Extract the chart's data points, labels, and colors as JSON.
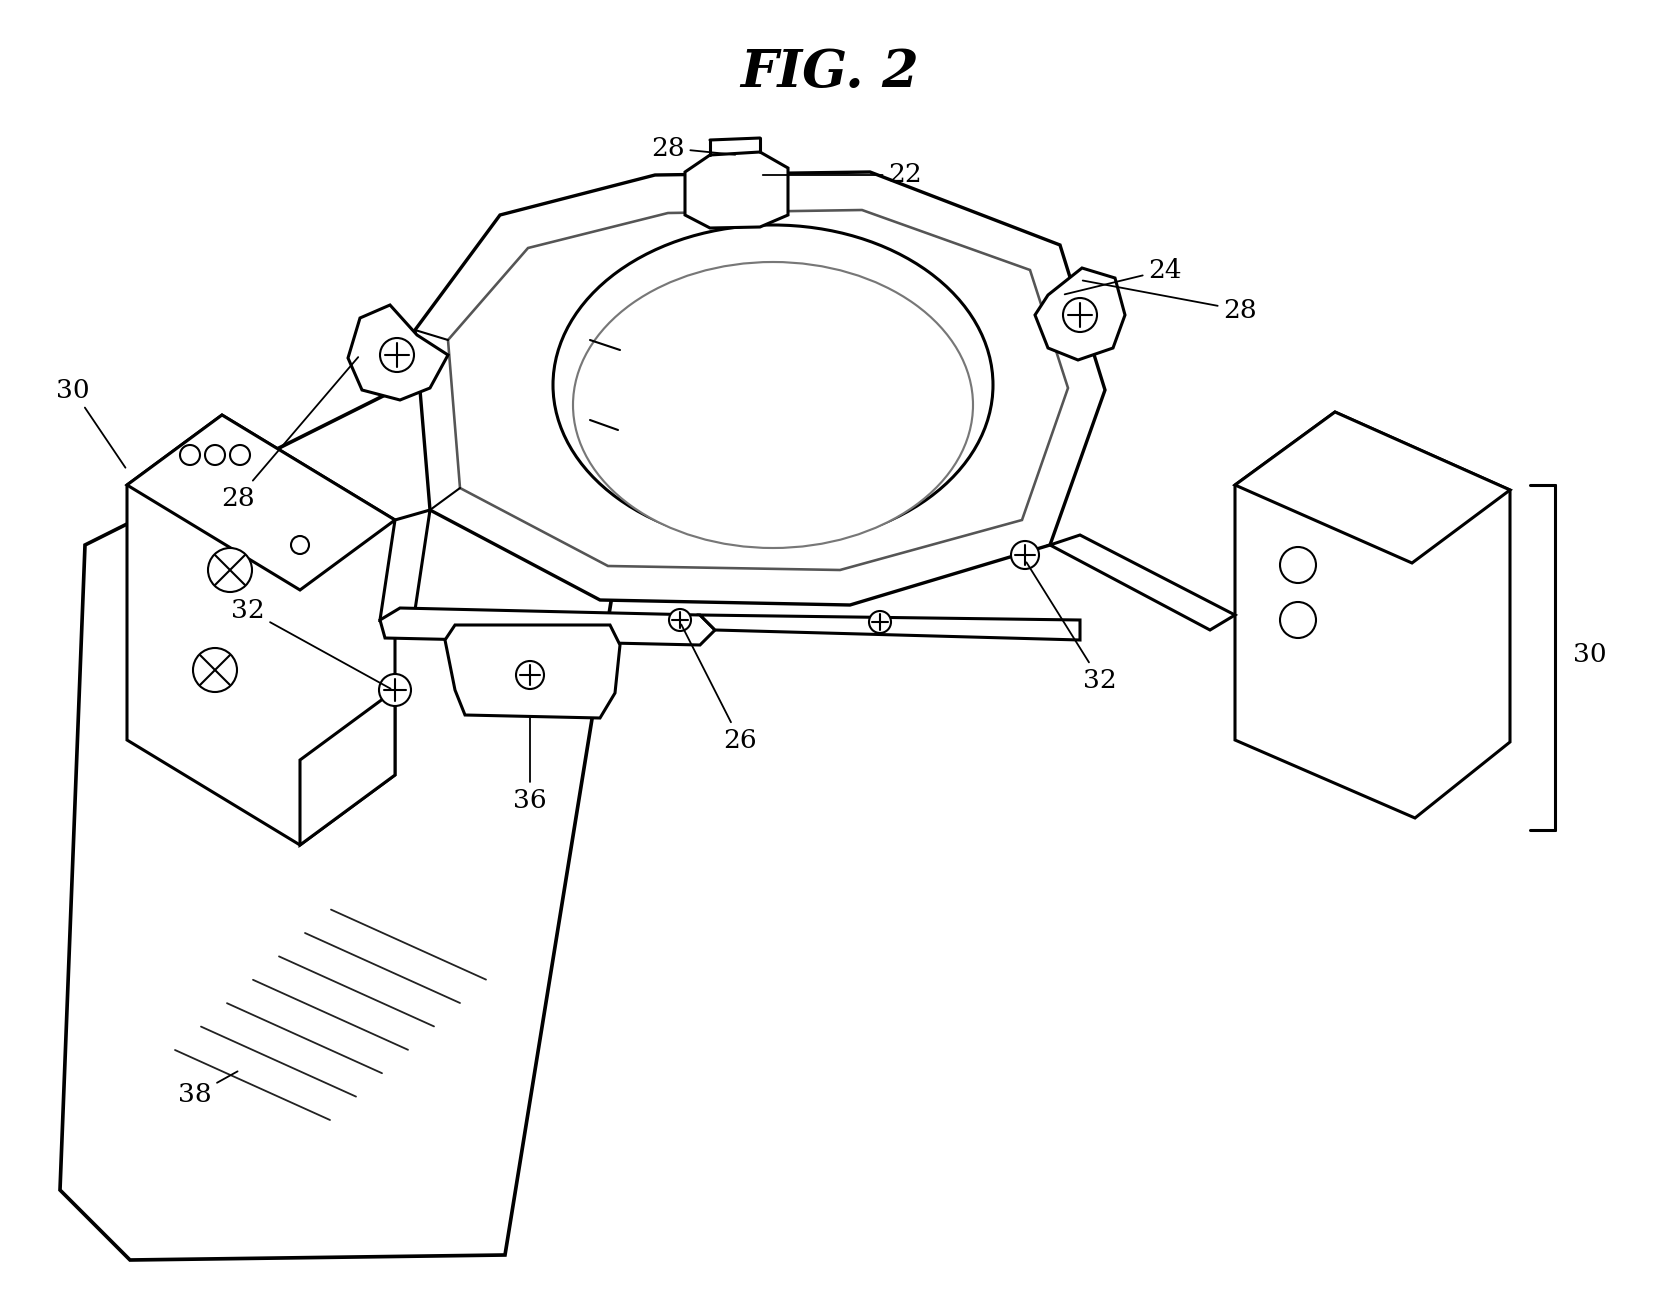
{
  "title": "FIG. 2",
  "title_fontsize": 38,
  "bg_color": "#ffffff",
  "lc": "#000000",
  "lw": 2.2,
  "thin_lw": 1.5,
  "label_fontsize": 19,
  "fig_width": 16.6,
  "fig_height": 13.12
}
